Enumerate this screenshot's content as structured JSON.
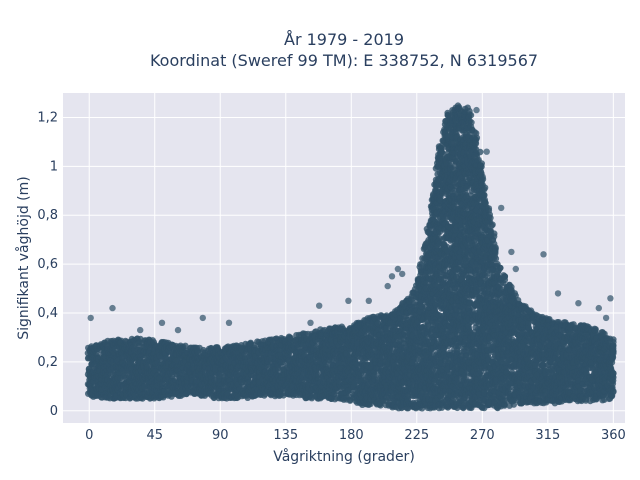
{
  "chart_data": {
    "type": "scatter",
    "title_lines": [
      "År 1979 - 2019",
      "Koordinat (Sweref 99 TM): E 338752, N 6319567"
    ],
    "xlabel": "Vågriktning (grader)",
    "ylabel": "Signifikant våghöjd (m)",
    "xlim": [
      -18,
      368
    ],
    "ylim": [
      -0.05,
      1.3
    ],
    "x_ticks": [
      0,
      45,
      90,
      135,
      180,
      225,
      270,
      315,
      360
    ],
    "x_tick_labels": [
      "0",
      "45",
      "90",
      "135",
      "180",
      "225",
      "270",
      "315",
      "360"
    ],
    "y_ticks": [
      0,
      0.2,
      0.4,
      0.6,
      0.8,
      1.0,
      1.2
    ],
    "y_tick_labels": [
      "0",
      "0,2",
      "0,4",
      "0,6",
      "0,8",
      "1",
      "1,2"
    ],
    "grid": true,
    "marker_color": "#2f5168",
    "plot_bg": "#e5e5ef",
    "envelope": {
      "x": [
        0,
        15,
        30,
        45,
        60,
        75,
        90,
        105,
        120,
        135,
        150,
        165,
        180,
        190,
        200,
        210,
        220,
        225,
        230,
        235,
        240,
        245,
        250,
        255,
        260,
        265,
        270,
        275,
        280,
        285,
        290,
        295,
        300,
        310,
        320,
        330,
        340,
        350,
        360
      ],
      "low": [
        0.06,
        0.05,
        0.05,
        0.05,
        0.06,
        0.06,
        0.05,
        0.05,
        0.06,
        0.06,
        0.05,
        0.05,
        0.04,
        0.02,
        0.02,
        0.01,
        0.01,
        0.01,
        0.01,
        0.01,
        0.01,
        0.01,
        0.01,
        0.01,
        0.01,
        0.01,
        0.01,
        0.01,
        0.01,
        0.02,
        0.02,
        0.03,
        0.03,
        0.03,
        0.03,
        0.04,
        0.04,
        0.04,
        0.05
      ],
      "high": [
        0.26,
        0.29,
        0.3,
        0.29,
        0.27,
        0.26,
        0.26,
        0.27,
        0.29,
        0.3,
        0.32,
        0.34,
        0.35,
        0.38,
        0.39,
        0.4,
        0.47,
        0.52,
        0.66,
        0.85,
        1.05,
        1.2,
        1.25,
        1.25,
        1.24,
        1.15,
        0.98,
        0.8,
        0.63,
        0.55,
        0.5,
        0.45,
        0.42,
        0.39,
        0.37,
        0.36,
        0.35,
        0.33,
        0.3
      ]
    },
    "outliers": [
      {
        "x": 1,
        "y": 0.38
      },
      {
        "x": 16,
        "y": 0.42
      },
      {
        "x": 35,
        "y": 0.33
      },
      {
        "x": 50,
        "y": 0.36
      },
      {
        "x": 61,
        "y": 0.33
      },
      {
        "x": 78,
        "y": 0.38
      },
      {
        "x": 96,
        "y": 0.36
      },
      {
        "x": 152,
        "y": 0.36
      },
      {
        "x": 158,
        "y": 0.43
      },
      {
        "x": 178,
        "y": 0.45
      },
      {
        "x": 192,
        "y": 0.45
      },
      {
        "x": 205,
        "y": 0.51
      },
      {
        "x": 208,
        "y": 0.55
      },
      {
        "x": 212,
        "y": 0.58
      },
      {
        "x": 215,
        "y": 0.56
      },
      {
        "x": 266,
        "y": 1.23
      },
      {
        "x": 273,
        "y": 1.06
      },
      {
        "x": 283,
        "y": 0.83
      },
      {
        "x": 290,
        "y": 0.65
      },
      {
        "x": 293,
        "y": 0.58
      },
      {
        "x": 312,
        "y": 0.64
      },
      {
        "x": 322,
        "y": 0.48
      },
      {
        "x": 336,
        "y": 0.44
      },
      {
        "x": 350,
        "y": 0.42
      },
      {
        "x": 355,
        "y": 0.38
      },
      {
        "x": 358,
        "y": 0.46
      }
    ]
  }
}
